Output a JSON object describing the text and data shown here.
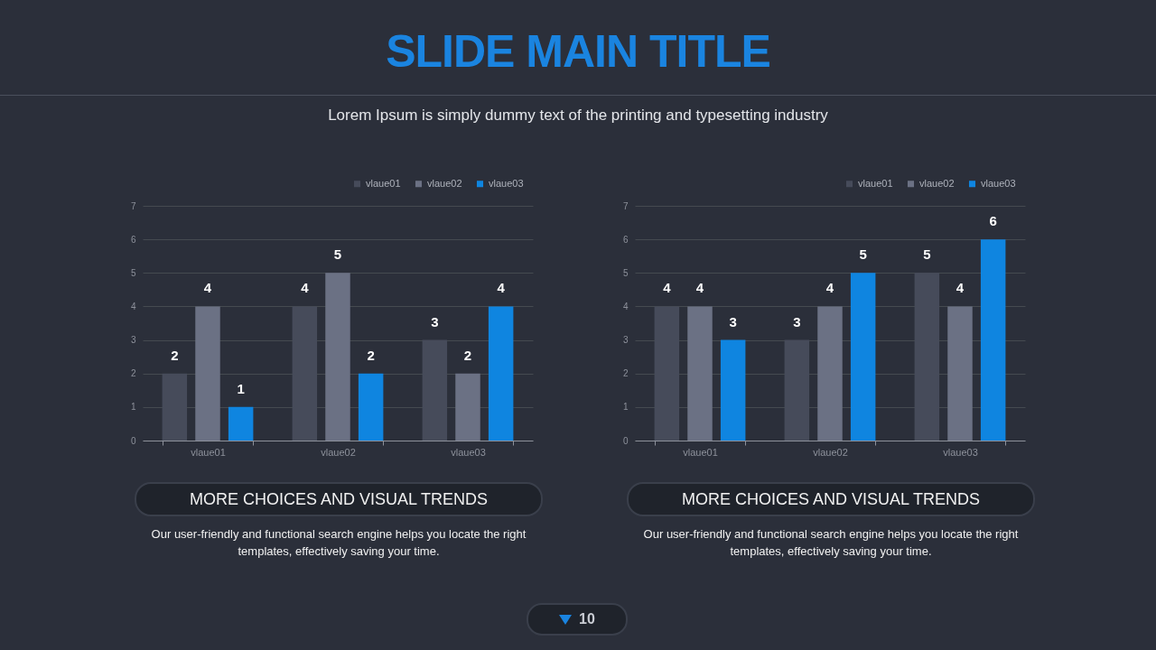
{
  "chart_data": [
    {
      "type": "bar",
      "title": "SLIDE MAIN TITLE",
      "subtitle": "Lorem Ipsum is simply dummy text of the printing and typesetting industry",
      "categories": [
        "vlaue01",
        "vlaue02",
        "vlaue03"
      ],
      "series": [
        {
          "name": "vlaue01",
          "color": "#464b5a",
          "values": [
            2,
            4,
            3
          ]
        },
        {
          "name": "vlaue02",
          "color": "#6b7184",
          "values": [
            4,
            5,
            2
          ]
        },
        {
          "name": "vlaue03",
          "color": "#0f85e0",
          "values": [
            1,
            2,
            4
          ]
        }
      ],
      "ylim": [
        0,
        7
      ],
      "yticks": [
        0,
        1,
        2,
        3,
        4,
        5,
        6,
        7
      ],
      "grid": "y",
      "legend": "top right",
      "data_labels": true,
      "annotations": [
        "MORE CHOICES AND VISUAL TRENDS",
        "Our user-friendly and functional search engine helps you locate the right templates, effectively saving your time.",
        "10"
      ]
    },
    {
      "type": "bar",
      "categories": [
        "vlaue01",
        "vlaue02",
        "vlaue03"
      ],
      "series": [
        {
          "name": "vlaue01",
          "color": "#464b5a",
          "values": [
            4,
            3,
            5
          ]
        },
        {
          "name": "vlaue02",
          "color": "#6b7184",
          "values": [
            4,
            4,
            4
          ]
        },
        {
          "name": "vlaue03",
          "color": "#0f85e0",
          "values": [
            3,
            5,
            6
          ]
        }
      ],
      "ylim": [
        0,
        7
      ],
      "yticks": [
        0,
        1,
        2,
        3,
        4,
        5,
        6,
        7
      ],
      "grid": "y",
      "legend": "top right",
      "data_labels": true,
      "annotations": [
        "MORE CHOICES AND VISUAL TRENDS",
        "Our user-friendly and functional search engine helps you locate the right templates, effectively saving your time."
      ]
    }
  ]
}
